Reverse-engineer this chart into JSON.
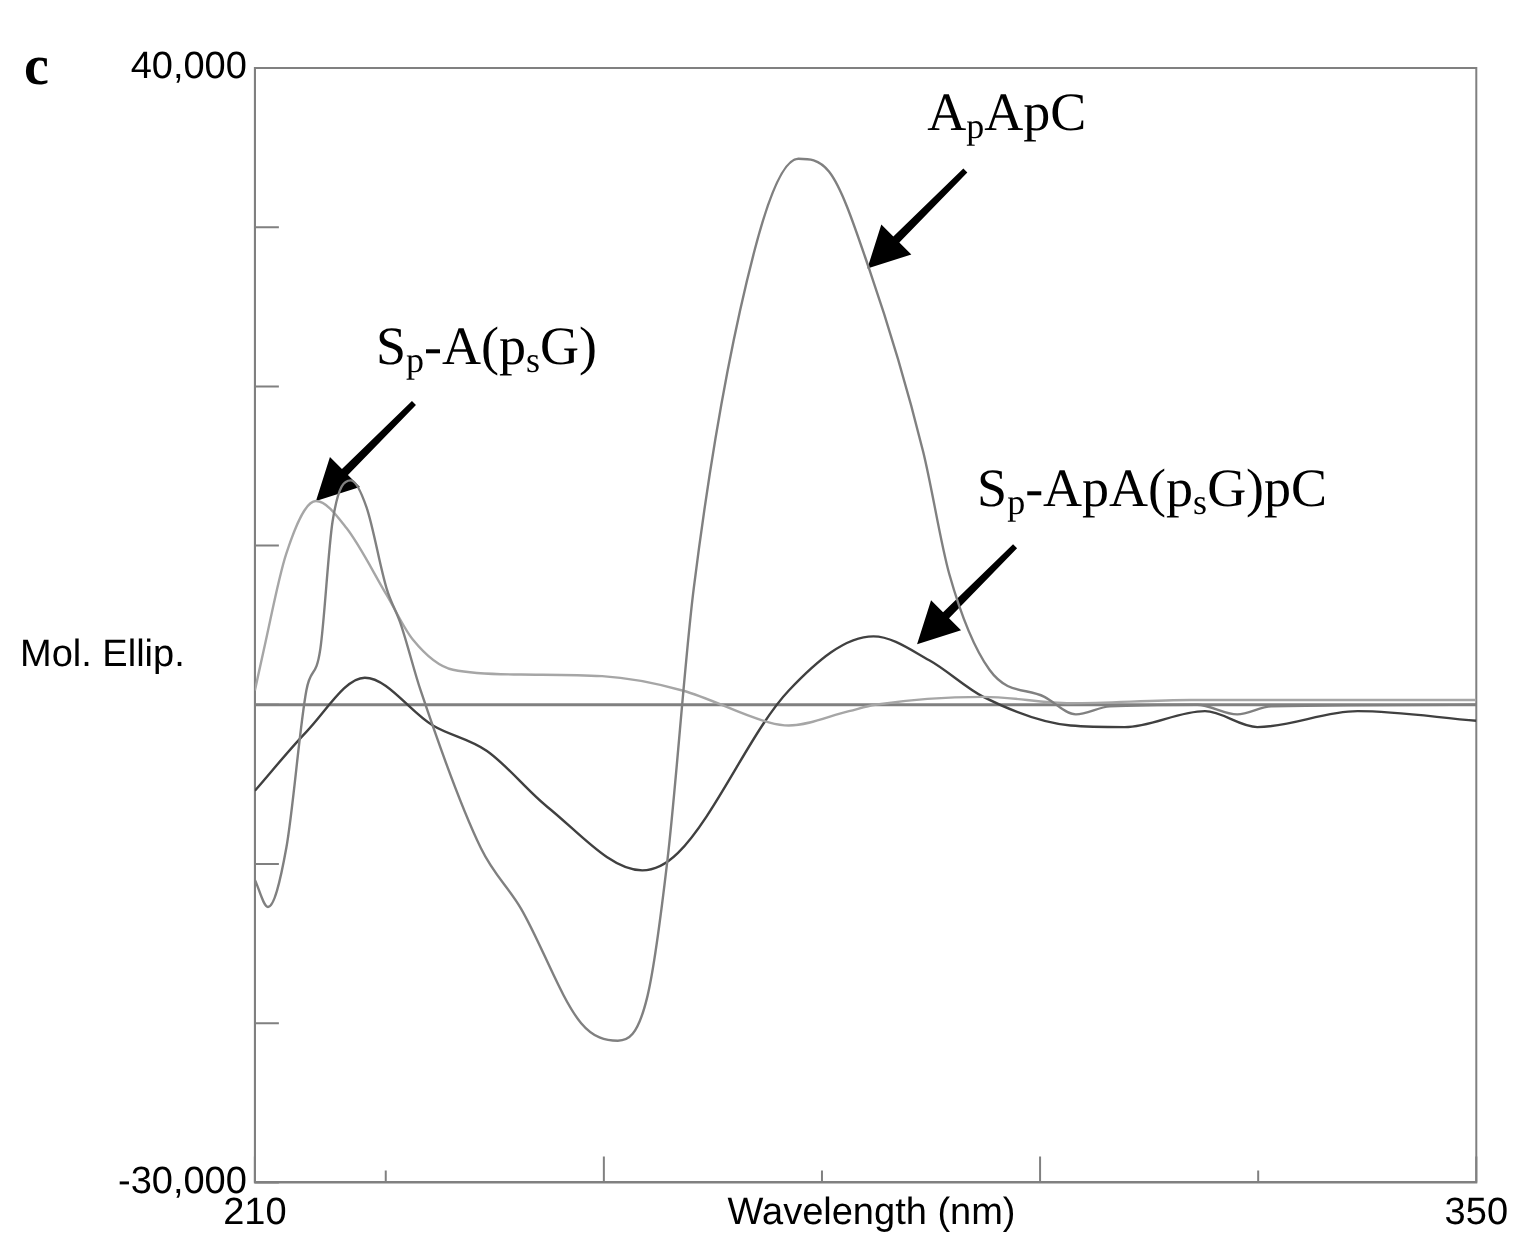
{
  "chart_data": {
    "type": "line",
    "xlabel": "Wavelength (nm)",
    "ylabel": "Mol. Ellip.",
    "xlim": [
      210,
      350
    ],
    "xticks": [
      210,
      {
        "value": 225,
        "label": null
      },
      {
        "value": 250,
        "label": null
      },
      {
        "value": 275,
        "label": null
      },
      {
        "value": 300,
        "label": null
      },
      {
        "value": 325,
        "label": null
      },
      350
    ],
    "ylim": [
      -30000,
      40000
    ],
    "yticks": [
      {
        "value": -30000,
        "label": "-30,000"
      },
      {
        "value": -20000,
        "label": null
      },
      {
        "value": -10000,
        "label": null
      },
      {
        "value": 0,
        "label": null
      },
      {
        "value": 10000,
        "label": null
      },
      {
        "value": 20000,
        "label": null
      },
      {
        "value": 30000,
        "label": null
      },
      {
        "value": 40000,
        "label": "40,000"
      }
    ],
    "grid": false,
    "legend": false,
    "marker": "none",
    "line_style": "solid",
    "ref_lines": [
      {
        "axis": "y",
        "value": 0,
        "color": "#808080"
      }
    ],
    "annotations": [
      "c",
      {
        "text": "A$_{p}$ApC",
        "x": 280.2,
        "y": 27400
      },
      {
        "text": "S$_{p}$-A(p$_{s}$G)",
        "x": 217,
        "y": 12800
      },
      {
        "text": "S$_{p}$-ApA(p$_{s}$G)pC",
        "x": 285.9,
        "y": 3800
      }
    ],
    "series": [
      {
        "color": "#808080",
        "x": [
          210,
          211.5,
          213.6,
          215.9,
          217.5,
          218.9,
          221,
          222.8,
          225.1,
          226.7,
          229,
          235.9,
          240.5,
          247.4,
          251.6,
          255,
          257.3,
          260.3,
          267.3,
          272.3,
          275.8,
          280.4,
          286.6,
          289.6,
          294.2,
          300.5,
          304.1,
          308,
          318,
          322.6,
          326.5,
          350
        ],
        "values": [
          -11000,
          -12700,
          -9000,
          900,
          3500,
          11500,
          14100,
          12400,
          7300,
          5100,
          900,
          -9000,
          -12800,
          -20000,
          -21100,
          -18300,
          -9700,
          7300,
          28600,
          34300,
          33500,
          27400,
          15900,
          8200,
          2200,
          500,
          -600,
          -100,
          0,
          -600,
          -100,
          0
        ]
      },
      {
        "color": "#a6a6a6",
        "x": [
          210,
          211,
          213.6,
          217,
          220.5,
          225.1,
          228.1,
          232.7,
          240.5,
          249.8,
          259,
          268.9,
          271.2,
          278.1,
          281.1,
          293.5,
          303.5,
          317.3,
          350
        ],
        "values": [
          900,
          3400,
          9500,
          12800,
          11100,
          6900,
          4100,
          2200,
          1900,
          1800,
          900,
          -1100,
          -1300,
          -400,
          0,
          500,
          100,
          300,
          300
        ]
      },
      {
        "color": "#404040",
        "x": [
          210,
          215.9,
          222.6,
          230.4,
          236.6,
          243.5,
          254.4,
          258.5,
          271.2,
          280.9,
          287.3,
          293.5,
          303.5,
          309.7,
          318.9,
          324.9,
          336.4,
          350
        ],
        "values": [
          -5400,
          -1700,
          1700,
          -1300,
          -2900,
          -6400,
          -10400,
          -9300,
          900,
          4300,
          2800,
          500,
          -1300,
          -1400,
          -400,
          -1400,
          -400,
          -1000
        ]
      }
    ]
  }
}
